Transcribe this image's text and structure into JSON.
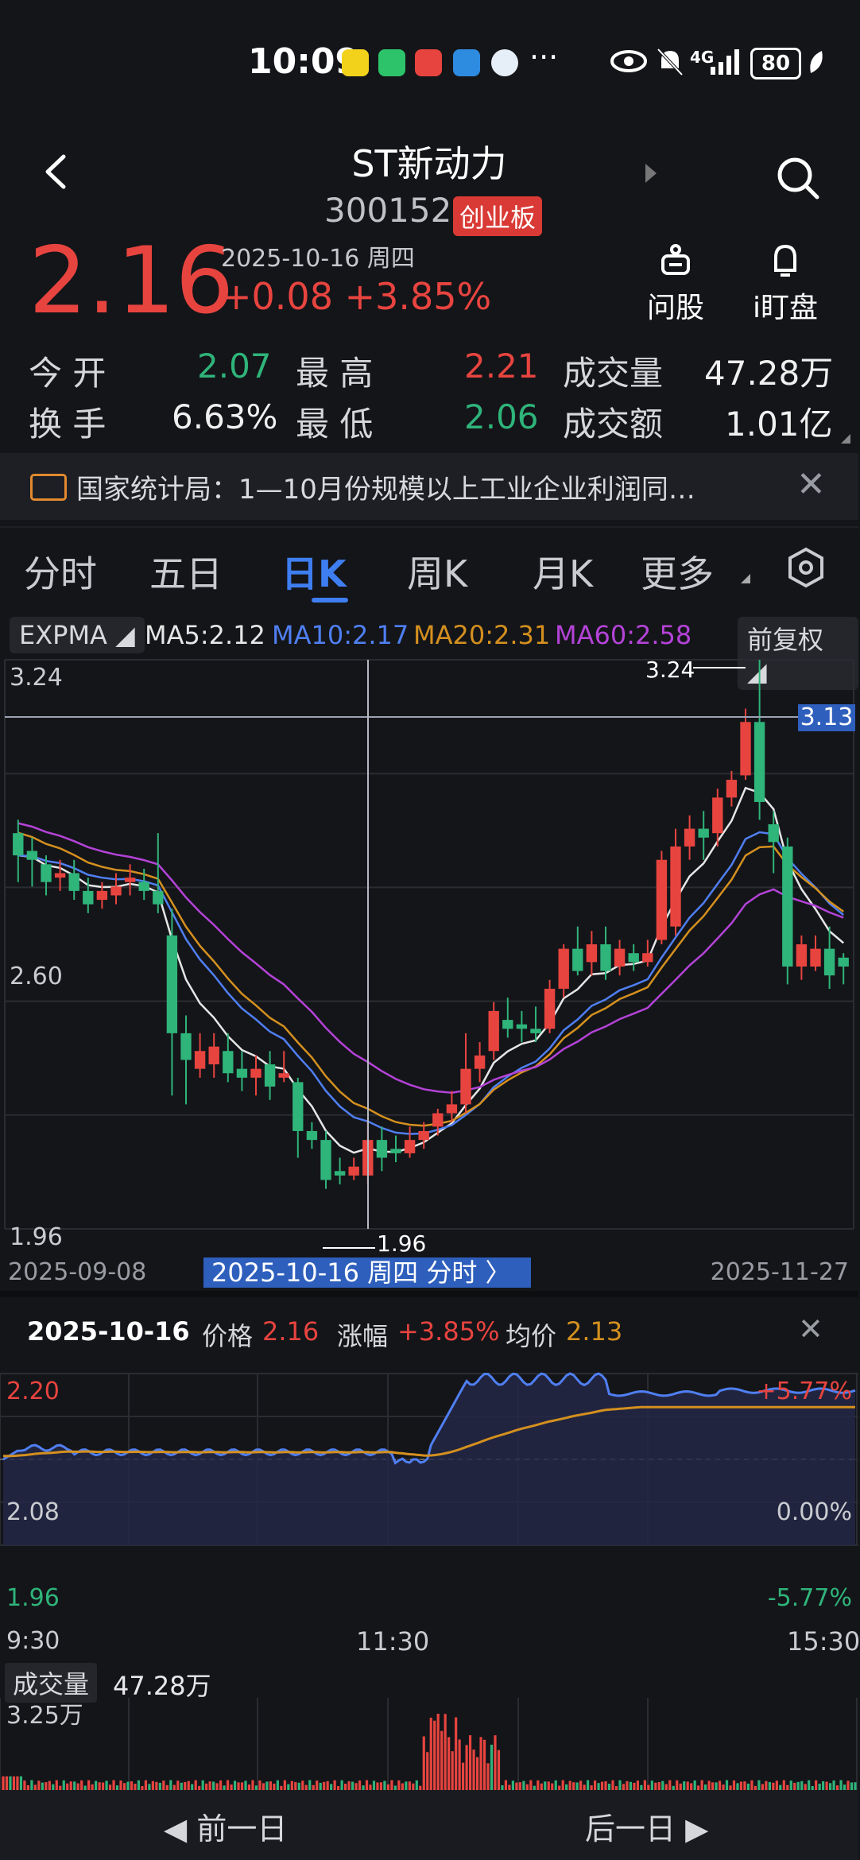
{
  "status": {
    "time": "10:09",
    "network": "4G",
    "battery": "80",
    "more": "···"
  },
  "header": {
    "title": "ST新动力",
    "code": "300152",
    "board": "创业板"
  },
  "quote": {
    "price": "2.16",
    "datetime": "2025-10-16 周四",
    "change": "+0.08",
    "change_pct": "+3.85%"
  },
  "tools": [
    {
      "label": "问股"
    },
    {
      "label": "i盯盘"
    }
  ],
  "stats": {
    "open_label": "今  开",
    "open": "2.07",
    "high_label": "最  高",
    "high": "2.21",
    "vol_label": "成交量",
    "vol": "47.28万",
    "turn_label": "换  手",
    "turn": "6.63%",
    "low_label": "最  低",
    "low": "2.06",
    "amt_label": "成交额",
    "amt": "1.01亿"
  },
  "news": {
    "text": "国家统计局：1—10月份规模以上工业企业利润同…"
  },
  "tabs": [
    "分时",
    "五日",
    "日K",
    "周K",
    "月K",
    "更多"
  ],
  "ma_legend": {
    "indicator": "EXPMA",
    "ma5": "MA5:2.12",
    "ma10": "MA10:2.17",
    "ma20": "MA20:2.31",
    "ma60": "MA60:2.58",
    "adjust": "前复权"
  },
  "colors": {
    "up": "#e8443f",
    "down": "#2fb47a",
    "accent": "#3e7ef0",
    "ma5": "#e6e6e6",
    "ma10": "#4f7ff2",
    "ma20": "#d4901f",
    "ma60": "#b443d8"
  },
  "kline": {
    "y_labels": [
      "3.24",
      "2.60",
      "1.96"
    ],
    "x_start": "2025-09-08",
    "x_end": "2025-11-27",
    "cross_label": "2025-10-16 周四 分时 〉",
    "price_tag": "3.13",
    "max_label": "3.24",
    "min_label": "1.96"
  },
  "intraday_info": {
    "date": "2025-10-16",
    "price_label": "价格",
    "price": "2.16",
    "chg_label": "涨幅",
    "chg": "+3.85%",
    "avg_label": "均价",
    "avg": "2.13"
  },
  "intraday": {
    "y_left": [
      "2.20",
      "2.08",
      "1.96"
    ],
    "y_right": [
      "+5.77%",
      "0.00%",
      "-5.77%"
    ],
    "x_labels": [
      "9:30",
      "11:30",
      "15:30"
    ]
  },
  "volume": {
    "label": "成交量",
    "value": "47.28万",
    "max": "3.25万"
  },
  "nav": {
    "prev": "前一日",
    "next": "后一日"
  },
  "chart_data": [
    {
      "type": "candlestick",
      "title": "日K",
      "xrange": [
        "2025-09-08",
        "2025-11-27"
      ],
      "ylim": [
        1.96,
        3.24
      ],
      "candles": [
        [
          2.85,
          2.8,
          2.88,
          2.74
        ],
        [
          2.81,
          2.79,
          2.84,
          2.73
        ],
        [
          2.78,
          2.74,
          2.8,
          2.71
        ],
        [
          2.75,
          2.76,
          2.79,
          2.72
        ],
        [
          2.76,
          2.72,
          2.79,
          2.7
        ],
        [
          2.72,
          2.69,
          2.75,
          2.67
        ],
        [
          2.7,
          2.72,
          2.74,
          2.68
        ],
        [
          2.71,
          2.73,
          2.76,
          2.69
        ],
        [
          2.74,
          2.75,
          2.78,
          2.71
        ],
        [
          2.74,
          2.72,
          2.77,
          2.7
        ],
        [
          2.72,
          2.69,
          2.85,
          2.67
        ],
        [
          2.62,
          2.4,
          2.68,
          2.26
        ],
        [
          2.4,
          2.34,
          2.44,
          2.24
        ],
        [
          2.32,
          2.36,
          2.4,
          2.3
        ],
        [
          2.33,
          2.37,
          2.4,
          2.3
        ],
        [
          2.36,
          2.31,
          2.4,
          2.29
        ],
        [
          2.32,
          2.3,
          2.36,
          2.27
        ],
        [
          2.3,
          2.32,
          2.35,
          2.26
        ],
        [
          2.33,
          2.28,
          2.36,
          2.25
        ],
        [
          2.3,
          2.31,
          2.36,
          2.29
        ],
        [
          2.29,
          2.18,
          2.3,
          2.12
        ],
        [
          2.18,
          2.16,
          2.2,
          2.14
        ],
        [
          2.16,
          2.07,
          2.18,
          2.05
        ],
        [
          2.09,
          2.08,
          2.12,
          2.06
        ],
        [
          2.08,
          2.1,
          2.12,
          2.07
        ],
        [
          2.08,
          2.16,
          2.21,
          2.06
        ],
        [
          2.16,
          2.12,
          2.19,
          2.09
        ],
        [
          2.14,
          2.13,
          2.17,
          2.11
        ],
        [
          2.13,
          2.16,
          2.19,
          2.12
        ],
        [
          2.16,
          2.18,
          2.2,
          2.14
        ],
        [
          2.19,
          2.22,
          2.23,
          2.17
        ],
        [
          2.22,
          2.24,
          2.27,
          2.2
        ],
        [
          2.24,
          2.32,
          2.4,
          2.22
        ],
        [
          2.32,
          2.35,
          2.38,
          2.29
        ],
        [
          2.36,
          2.45,
          2.47,
          2.34
        ],
        [
          2.43,
          2.41,
          2.48,
          2.39
        ],
        [
          2.42,
          2.41,
          2.45,
          2.38
        ],
        [
          2.41,
          2.4,
          2.46,
          2.38
        ],
        [
          2.41,
          2.5,
          2.52,
          2.4
        ],
        [
          2.5,
          2.59,
          2.6,
          2.48
        ],
        [
          2.59,
          2.54,
          2.64,
          2.53
        ],
        [
          2.56,
          2.6,
          2.63,
          2.53
        ],
        [
          2.6,
          2.54,
          2.64,
          2.52
        ],
        [
          2.55,
          2.59,
          2.61,
          2.53
        ],
        [
          2.58,
          2.56,
          2.6,
          2.54
        ],
        [
          2.56,
          2.58,
          2.61,
          2.55
        ],
        [
          2.61,
          2.79,
          2.81,
          2.6
        ],
        [
          2.64,
          2.82,
          2.86,
          2.62
        ],
        [
          2.82,
          2.86,
          2.89,
          2.79
        ],
        [
          2.86,
          2.84,
          2.9,
          2.79
        ],
        [
          2.85,
          2.93,
          2.95,
          2.82
        ],
        [
          2.93,
          2.97,
          2.99,
          2.91
        ],
        [
          2.98,
          3.1,
          3.13,
          2.97
        ],
        [
          3.1,
          2.92,
          3.24,
          2.88
        ],
        [
          2.87,
          2.83,
          2.9,
          2.76
        ],
        [
          2.82,
          2.55,
          2.84,
          2.51
        ],
        [
          2.55,
          2.6,
          2.62,
          2.52
        ],
        [
          2.55,
          2.59,
          2.62,
          2.54
        ],
        [
          2.59,
          2.53,
          2.64,
          2.5
        ],
        [
          2.57,
          2.55,
          2.58,
          2.51
        ]
      ]
    },
    {
      "type": "line",
      "title": "分时 2025-10-16",
      "x": [
        "9:30",
        "11:30",
        "15:30"
      ],
      "ylim": [
        1.96,
        2.2
      ],
      "series": [
        {
          "name": "价格"
        },
        {
          "name": "均价"
        }
      ]
    },
    {
      "type": "bar",
      "title": "成交量",
      "ylim": [
        0,
        3.25
      ]
    }
  ]
}
